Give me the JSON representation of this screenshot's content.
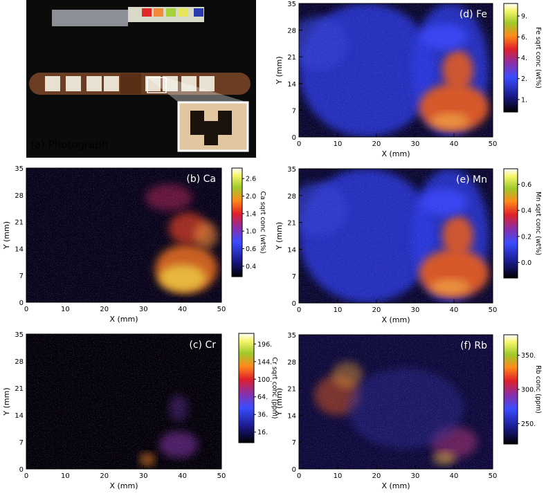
{
  "axes": {
    "x_ticks": [
      0,
      10,
      20,
      30,
      40,
      50
    ],
    "y_ticks": [
      0,
      7,
      14,
      21,
      28,
      35
    ],
    "x_label": "X (mm)",
    "y_label": "Y (mm)"
  },
  "photo": {
    "label": "(a) Photograph"
  },
  "panels": [
    {
      "label": "(b) Ca",
      "colorbar_label": "Ca sqrt conc (wt%)",
      "colorbar_ticks": [
        "0.4",
        "0.6",
        "1.0",
        "1.4",
        "2.0",
        "2.6"
      ]
    },
    {
      "label": "(c) Cr",
      "colorbar_label": "Cr sqrt conc (ppm)",
      "colorbar_ticks": [
        "16.",
        "36.",
        "64.",
        "100.",
        "144.",
        "196."
      ]
    },
    {
      "label": "(d) Fe",
      "colorbar_label": "Fe sqrt conc (wt%)",
      "colorbar_ticks": [
        "1.",
        "2.",
        "4.",
        "6.",
        "9."
      ]
    },
    {
      "label": "(e) Mn",
      "colorbar_label": "Mn sqrt conc (wt%)",
      "colorbar_ticks": [
        "0.0",
        "0.2",
        "0.4",
        "0.6"
      ]
    },
    {
      "label": "(f) Rb",
      "colorbar_label": "Rb conc (ppm)",
      "colorbar_ticks": [
        "250.",
        "300.",
        "350."
      ]
    }
  ]
}
